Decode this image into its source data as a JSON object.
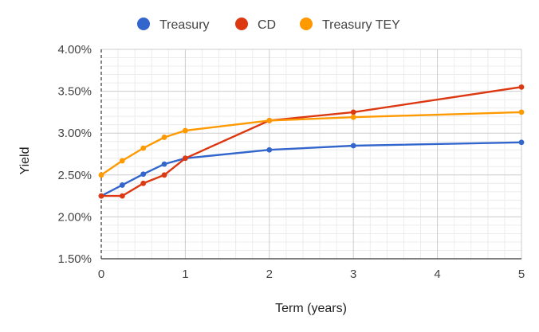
{
  "chart_data": {
    "type": "line",
    "xlabel": "Term (years)",
    "ylabel": "Yield",
    "xlim": [
      0,
      5
    ],
    "ylim": [
      1.5,
      4.0
    ],
    "x_ticks": [
      "0",
      "1",
      "2",
      "3",
      "4",
      "5"
    ],
    "y_ticks": [
      "1.50%",
      "2.00%",
      "2.50%",
      "3.00%",
      "3.50%",
      "4.00%"
    ],
    "grid": true,
    "legend_position": "top",
    "series": [
      {
        "name": "Treasury",
        "color": "#3366cc",
        "x": [
          0,
          0.25,
          0.5,
          0.75,
          1,
          2,
          3,
          5
        ],
        "y": [
          2.25,
          2.38,
          2.51,
          2.63,
          2.7,
          2.8,
          2.85,
          2.89
        ]
      },
      {
        "name": "CD",
        "color": "#dc3912",
        "x": [
          0,
          0.25,
          0.5,
          0.75,
          1,
          2,
          3,
          5
        ],
        "y": [
          2.25,
          2.25,
          2.4,
          2.5,
          2.7,
          3.15,
          3.25,
          3.55
        ]
      },
      {
        "name": "Treasury TEY",
        "color": "#ff9900",
        "x": [
          0,
          0.25,
          0.5,
          0.75,
          1,
          2,
          3,
          5
        ],
        "y": [
          2.5,
          2.67,
          2.82,
          2.95,
          3.03,
          3.15,
          3.19,
          3.25
        ]
      }
    ]
  }
}
